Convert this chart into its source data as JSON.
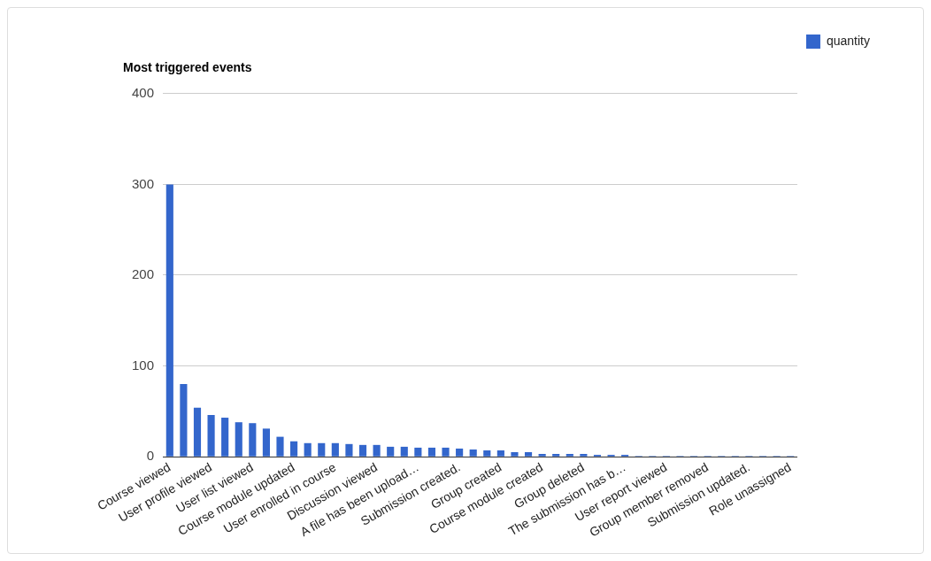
{
  "chart_data": {
    "type": "bar",
    "title": "Most triggered events",
    "categories": [
      "Course viewed",
      null,
      null,
      "User profile viewed",
      null,
      null,
      "User list viewed",
      null,
      null,
      "Course module updated",
      null,
      null,
      "User enrolled in course",
      null,
      null,
      "Discussion viewed",
      null,
      null,
      "A file has been upload…",
      null,
      null,
      "Submission created.",
      null,
      null,
      "Group created",
      null,
      null,
      "Course module created",
      null,
      null,
      "Group deleted",
      null,
      null,
      "The submission has b…",
      null,
      null,
      "User report viewed",
      null,
      null,
      "Group member removed",
      null,
      null,
      "Submission updated.",
      null,
      null,
      "Role unassigned"
    ],
    "series": [
      {
        "name": "quantity",
        "color": "#3366cc",
        "values": [
          300,
          80,
          54,
          46,
          43,
          38,
          37,
          31,
          22,
          17,
          15,
          15,
          15,
          14,
          13,
          13,
          11,
          11,
          10,
          10,
          10,
          9,
          8,
          7,
          7,
          5,
          5,
          3,
          3,
          3,
          3,
          2,
          2,
          2,
          1,
          1,
          1,
          1,
          1,
          1,
          1,
          1,
          1,
          1,
          1,
          1
        ]
      }
    ],
    "ylim": [
      0,
      400
    ],
    "yticks": [
      0,
      100,
      200,
      300,
      400
    ],
    "grid": "y",
    "legend": "top right"
  }
}
